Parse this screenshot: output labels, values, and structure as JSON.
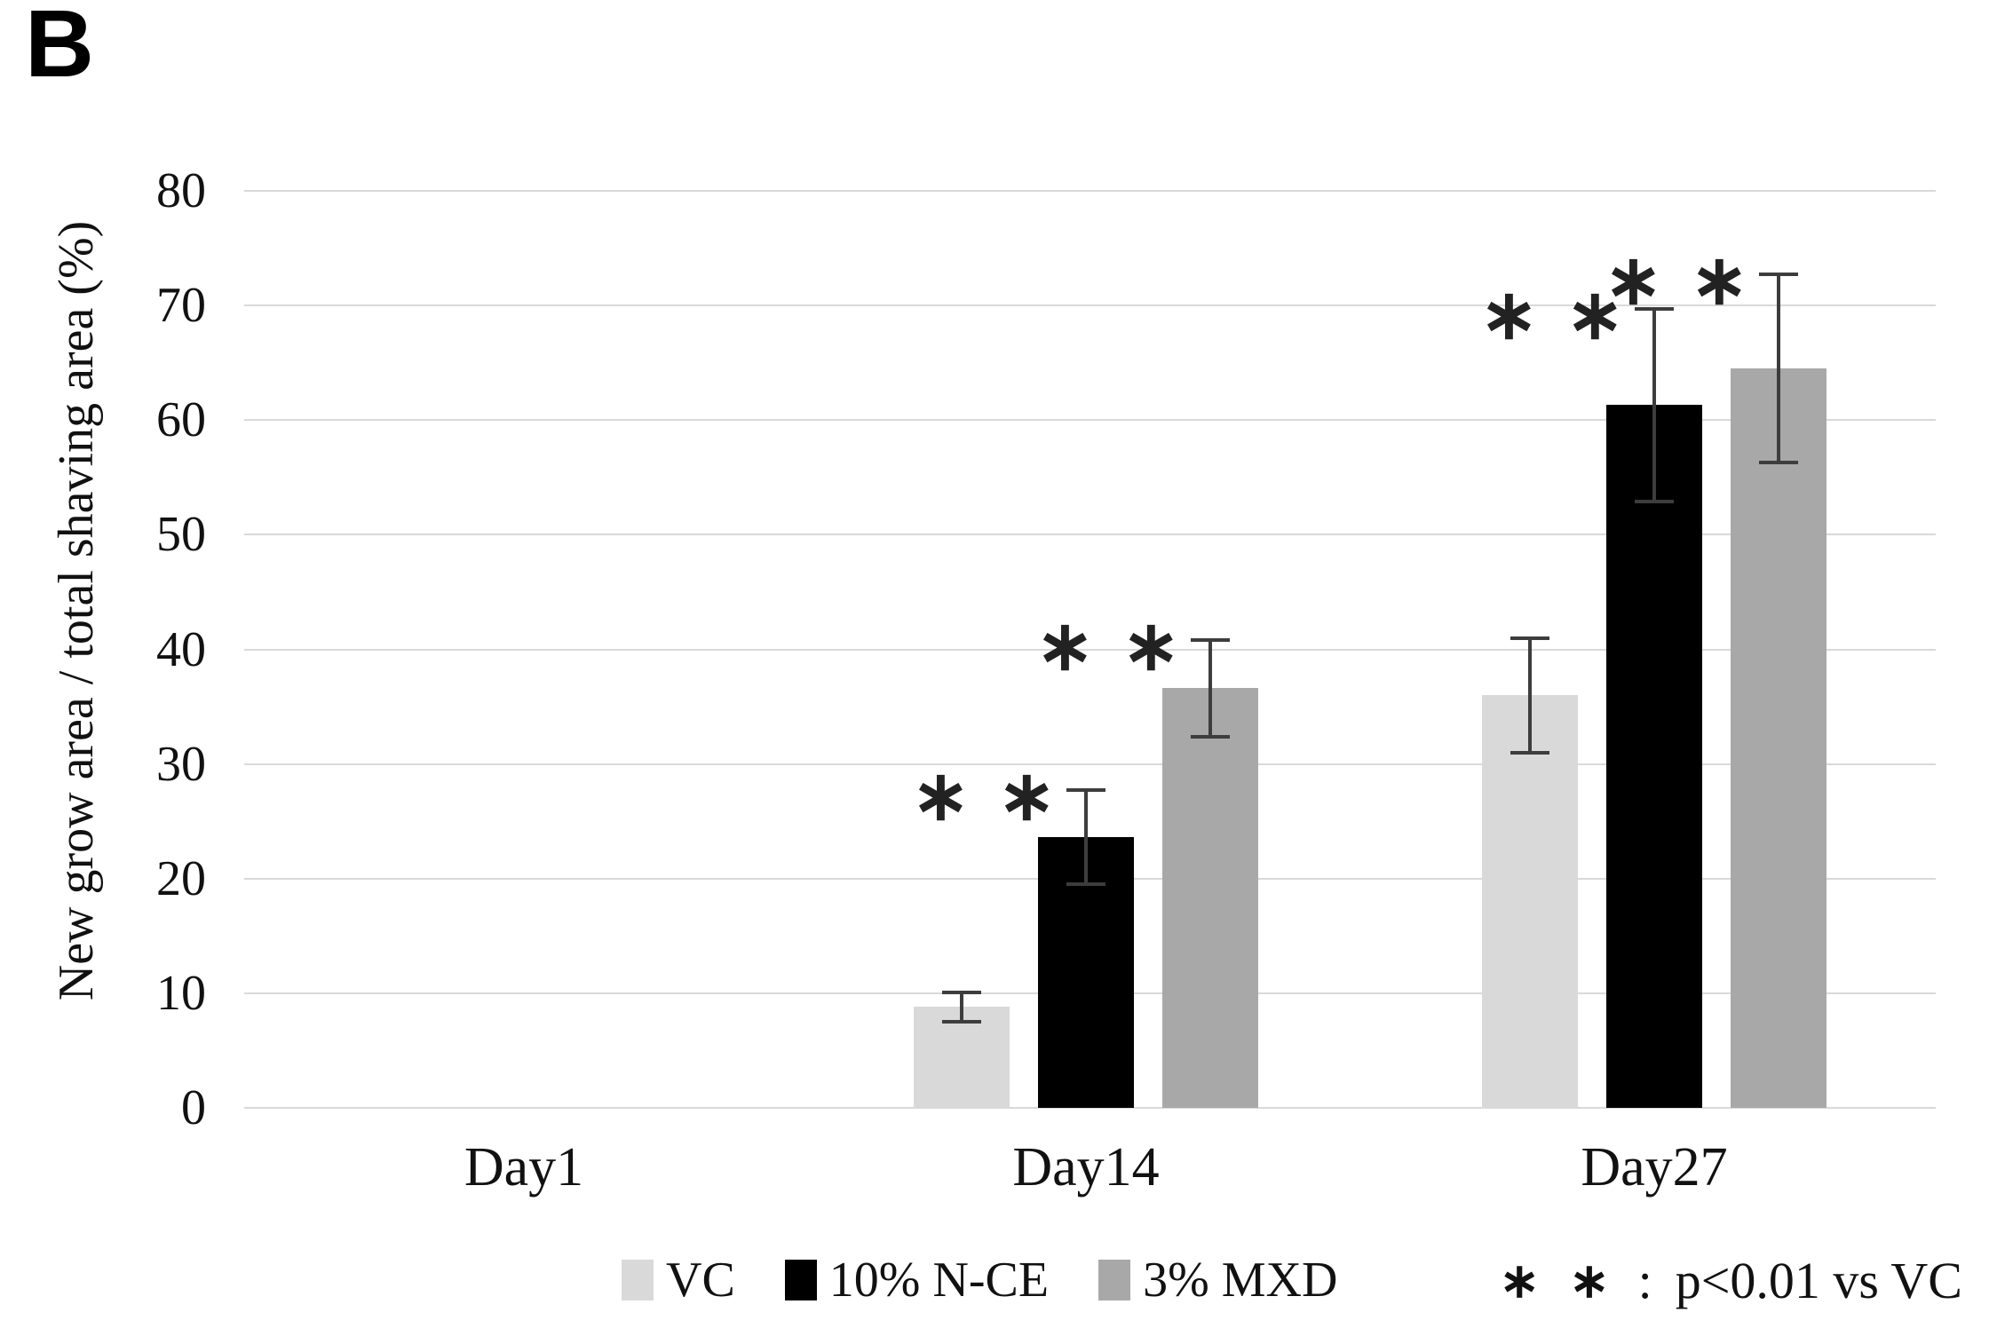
{
  "panel_label": "B",
  "chart_data": {
    "type": "bar",
    "title": "",
    "xlabel": "",
    "ylabel": "New grow area / total shaving area (%)",
    "ylim": [
      0,
      80
    ],
    "yticks": [
      0,
      10,
      20,
      30,
      40,
      50,
      60,
      70,
      80
    ],
    "grid": true,
    "legend_position": "bottom",
    "categories": [
      "Day1",
      "Day14",
      "Day27"
    ],
    "series": [
      {
        "name": "VC",
        "color": "#d9d9d9",
        "values": [
          0,
          8.8,
          36.0
        ],
        "errors": [
          0,
          1.3,
          5.0
        ],
        "significant": [
          false,
          false,
          false
        ]
      },
      {
        "name": "10% N-CE",
        "color": "#000000",
        "values": [
          0,
          23.6,
          61.3
        ],
        "errors": [
          0,
          4.1,
          8.4
        ],
        "significant": [
          false,
          true,
          true
        ]
      },
      {
        "name": "3% MXD",
        "color": "#a8a8a8",
        "values": [
          0,
          36.6,
          64.5
        ],
        "errors": [
          0,
          4.2,
          8.2
        ],
        "significant": [
          false,
          true,
          true
        ]
      }
    ],
    "significance_marker": "∗ ∗",
    "significance_note": {
      "marker": "∗ ∗",
      "separator": ":",
      "text": "p<0.01 vs VC"
    },
    "gridline_color": "#d9d9d9",
    "error_bar_color": "#3d3d3d"
  }
}
